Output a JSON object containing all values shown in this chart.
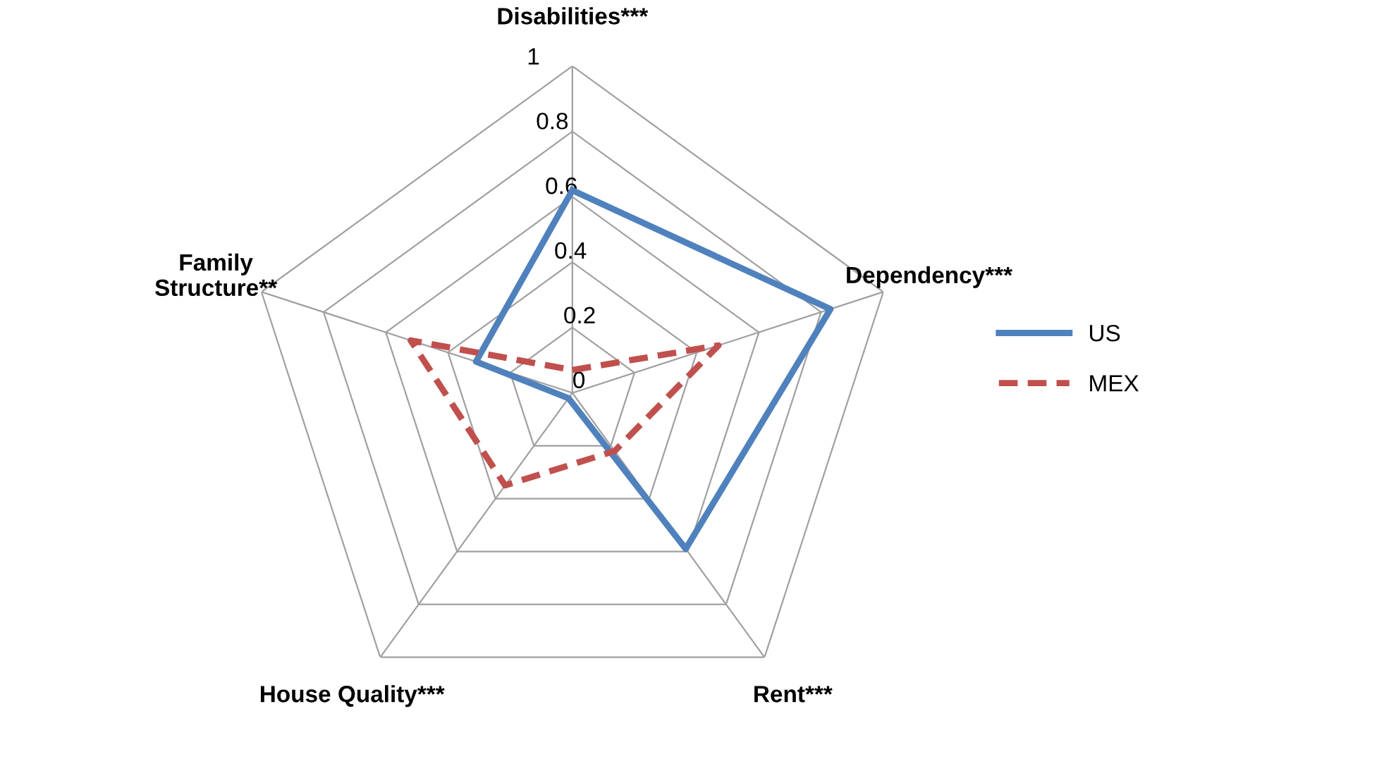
{
  "chart_data": {
    "type": "radar",
    "categories": [
      "Disabilities***",
      "Dependency***",
      "Rent***",
      "House Quality***",
      "Family\nStructure**"
    ],
    "series": [
      {
        "name": "US",
        "color": "#4f81bd",
        "line_style": "solid",
        "values": [
          0.62,
          0.83,
          0.59,
          0.02,
          0.31
        ]
      },
      {
        "name": "MEX",
        "color": "#c0504d",
        "line_style": "dashed",
        "values": [
          0.07,
          0.47,
          0.22,
          0.35,
          0.52
        ]
      }
    ],
    "ylim": [
      0,
      1
    ],
    "yticks": [
      0,
      0.2,
      0.4,
      0.6,
      0.8,
      1
    ],
    "grid": true,
    "legend": "right",
    "marker": "none"
  }
}
